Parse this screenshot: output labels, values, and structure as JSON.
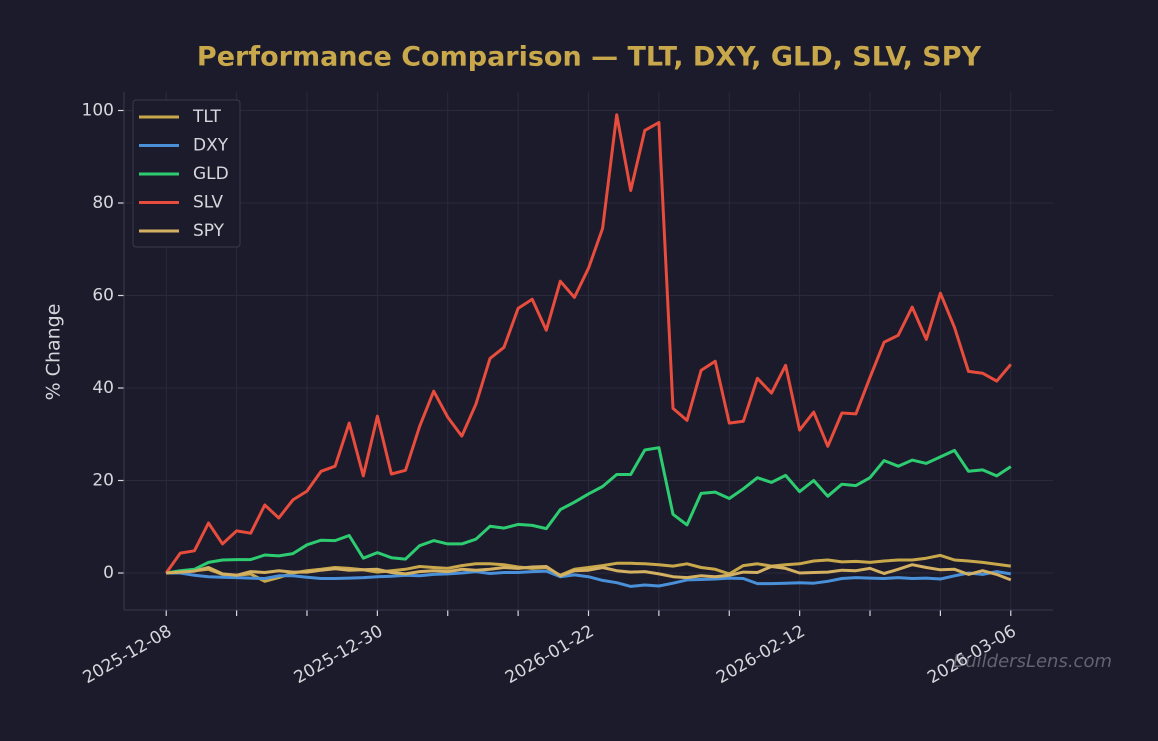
{
  "chart_data": {
    "type": "line",
    "title": "Performance Comparison — TLT, DXY, GLD, SLV, SPY",
    "y_label": "% Change",
    "watermark": "BuildersLens.com",
    "x": [
      "2025-12-08",
      "2025-12-09",
      "2025-12-10",
      "2025-12-11",
      "2025-12-12",
      "2025-12-15",
      "2025-12-16",
      "2025-12-17",
      "2025-12-18",
      "2025-12-19",
      "2025-12-22",
      "2025-12-23",
      "2025-12-24",
      "2025-12-26",
      "2025-12-29",
      "2025-12-30",
      "2025-12-31",
      "2026-01-02",
      "2026-01-05",
      "2026-01-06",
      "2026-01-07",
      "2026-01-08",
      "2026-01-09",
      "2026-01-12",
      "2026-01-13",
      "2026-01-14",
      "2026-01-15",
      "2026-01-16",
      "2026-01-20",
      "2026-01-21",
      "2026-01-22",
      "2026-01-23",
      "2026-01-26",
      "2026-01-27",
      "2026-01-28",
      "2026-01-29",
      "2026-01-30",
      "2026-02-02",
      "2026-02-03",
      "2026-02-04",
      "2026-02-05",
      "2026-02-06",
      "2026-02-09",
      "2026-02-10",
      "2026-02-11",
      "2026-02-12",
      "2026-02-13",
      "2026-02-17",
      "2026-02-18",
      "2026-02-19",
      "2026-02-20",
      "2026-02-23",
      "2026-02-24",
      "2026-02-25",
      "2026-02-26",
      "2026-02-27",
      "2026-03-02",
      "2026-03-03",
      "2026-03-04",
      "2026-03-05",
      "2026-03-06"
    ],
    "xticks": [
      "2025-12-08",
      "2025-12-30",
      "2026-01-22",
      "2026-02-12",
      "2026-03-06"
    ],
    "ylim": [
      -8,
      104
    ],
    "yticks": [
      0,
      20,
      40,
      60,
      80,
      100
    ],
    "grid": true,
    "legend": "upper-left",
    "series": [
      {
        "name": "TLT",
        "color": "#c9a84c",
        "values": [
          0,
          0.2,
          0.5,
          0.8,
          -0.3,
          -0.5,
          -0.2,
          -1.8,
          -1.0,
          0,
          0.5,
          0.8,
          1.2,
          1.0,
          0.7,
          0.2,
          0.5,
          0.8,
          1.4,
          1.2,
          1.0,
          1.6,
          2.0,
          2.0,
          1.8,
          1.3,
          1.0,
          1.2,
          -0.5,
          0.8,
          1.2,
          1.6,
          2.1,
          2.1,
          2.0,
          1.8,
          1.5,
          2.0,
          1.2,
          0.8,
          -0.2,
          1.6,
          2.0,
          1.5,
          1.8,
          2.0,
          2.6,
          2.8,
          2.4,
          2.5,
          2.3,
          2.6,
          2.8,
          2.8,
          3.2,
          3.8,
          2.8,
          2.6,
          2.3,
          1.9,
          1.5
        ]
      },
      {
        "name": "DXY",
        "color": "#4a90d9",
        "values": [
          0,
          0,
          -0.5,
          -0.8,
          -0.9,
          -1,
          -1.1,
          -1.2,
          -0.6,
          -0.6,
          -0.9,
          -1.2,
          -1.2,
          -1.1,
          -1.0,
          -0.8,
          -0.7,
          -0.5,
          -0.6,
          -0.3,
          -0.2,
          0,
          0.3,
          -0.1,
          0.1,
          0.1,
          0.3,
          0.4,
          -0.8,
          -0.4,
          -0.8,
          -1.6,
          -2.1,
          -2.9,
          -2.6,
          -2.8,
          -2.2,
          -1.5,
          -1.4,
          -1.3,
          -1.1,
          -1.2,
          -2.3,
          -2.3,
          -2.2,
          -2.1,
          -2.2,
          -1.8,
          -1.2,
          -1,
          -1.1,
          -1.2,
          -1,
          -1.2,
          -1.1,
          -1.3,
          -0.6,
          0,
          -0.3,
          0.3,
          -0.2
        ]
      },
      {
        "name": "GLD",
        "color": "#2ecc71",
        "values": [
          0,
          0.5,
          0.8,
          2.3,
          2.8,
          2.9,
          2.9,
          3.9,
          3.7,
          4.2,
          6.1,
          7.1,
          7,
          8.1,
          3.2,
          4.4,
          3.3,
          3.0,
          5.9,
          7.0,
          6.3,
          6.3,
          7.3,
          10.1,
          9.7,
          10.5,
          10.3,
          9.6,
          13.7,
          15.3,
          17.1,
          18.7,
          21.3,
          21.3,
          26.6,
          27.1,
          12.7,
          10.4,
          17.2,
          17.5,
          16.1,
          18.2,
          20.6,
          19.6,
          21.1,
          17.6,
          20.0,
          16.6,
          19.2,
          18.9,
          20.6,
          24.3,
          23.1,
          24.4,
          23.7,
          25.1,
          26.5,
          22.0,
          22.3,
          21.0,
          23.0
        ]
      },
      {
        "name": "SLV",
        "color": "#e74c3c",
        "values": [
          0,
          4.3,
          4.8,
          10.8,
          6.3,
          9.1,
          8.6,
          14.7,
          11.9,
          15.8,
          17.7,
          22,
          23.1,
          32.4,
          21,
          33.9,
          21.4,
          22.2,
          31.7,
          39.3,
          33.7,
          29.6,
          36.5,
          46.4,
          48.8,
          57.2,
          59.2,
          52.5,
          63.1,
          59.6,
          65.9,
          74.5,
          99.1,
          82.7,
          95.7,
          97.4,
          35.6,
          33,
          43.8,
          45.8,
          32.4,
          32.8,
          42.1,
          38.9,
          44.9,
          30.9,
          34.8,
          27.4,
          34.6,
          34.4,
          42.3,
          49.9,
          51.4,
          57.5,
          50.5,
          60.5,
          53.1,
          43.6,
          43.2,
          41.5,
          45.1
        ]
      },
      {
        "name": "SPY",
        "color": "#d4b062",
        "values": [
          0,
          0.2,
          0.4,
          1.2,
          -0.2,
          -0.5,
          0.3,
          0.1,
          0.5,
          0.2,
          0.2,
          0.6,
          0.9,
          0.6,
          0.7,
          0.8,
          0.1,
          -0.2,
          0.3,
          0.5,
          0.3,
          0.8,
          0.6,
          0.8,
          1.2,
          1.0,
          1.3,
          1.4,
          -0.6,
          0.5,
          0.6,
          1.2,
          0.5,
          0.2,
          0.3,
          -0.2,
          -0.8,
          -1.0,
          -0.6,
          -0.8,
          -0.5,
          0.2,
          0.1,
          1.4,
          1.0,
          0.0,
          0.1,
          0.2,
          0.6,
          0.5,
          1.0,
          -0.1,
          0.8,
          1.8,
          1.2,
          0.7,
          0.8,
          -0.3,
          0.5,
          -0.3,
          -1.5
        ]
      }
    ]
  }
}
